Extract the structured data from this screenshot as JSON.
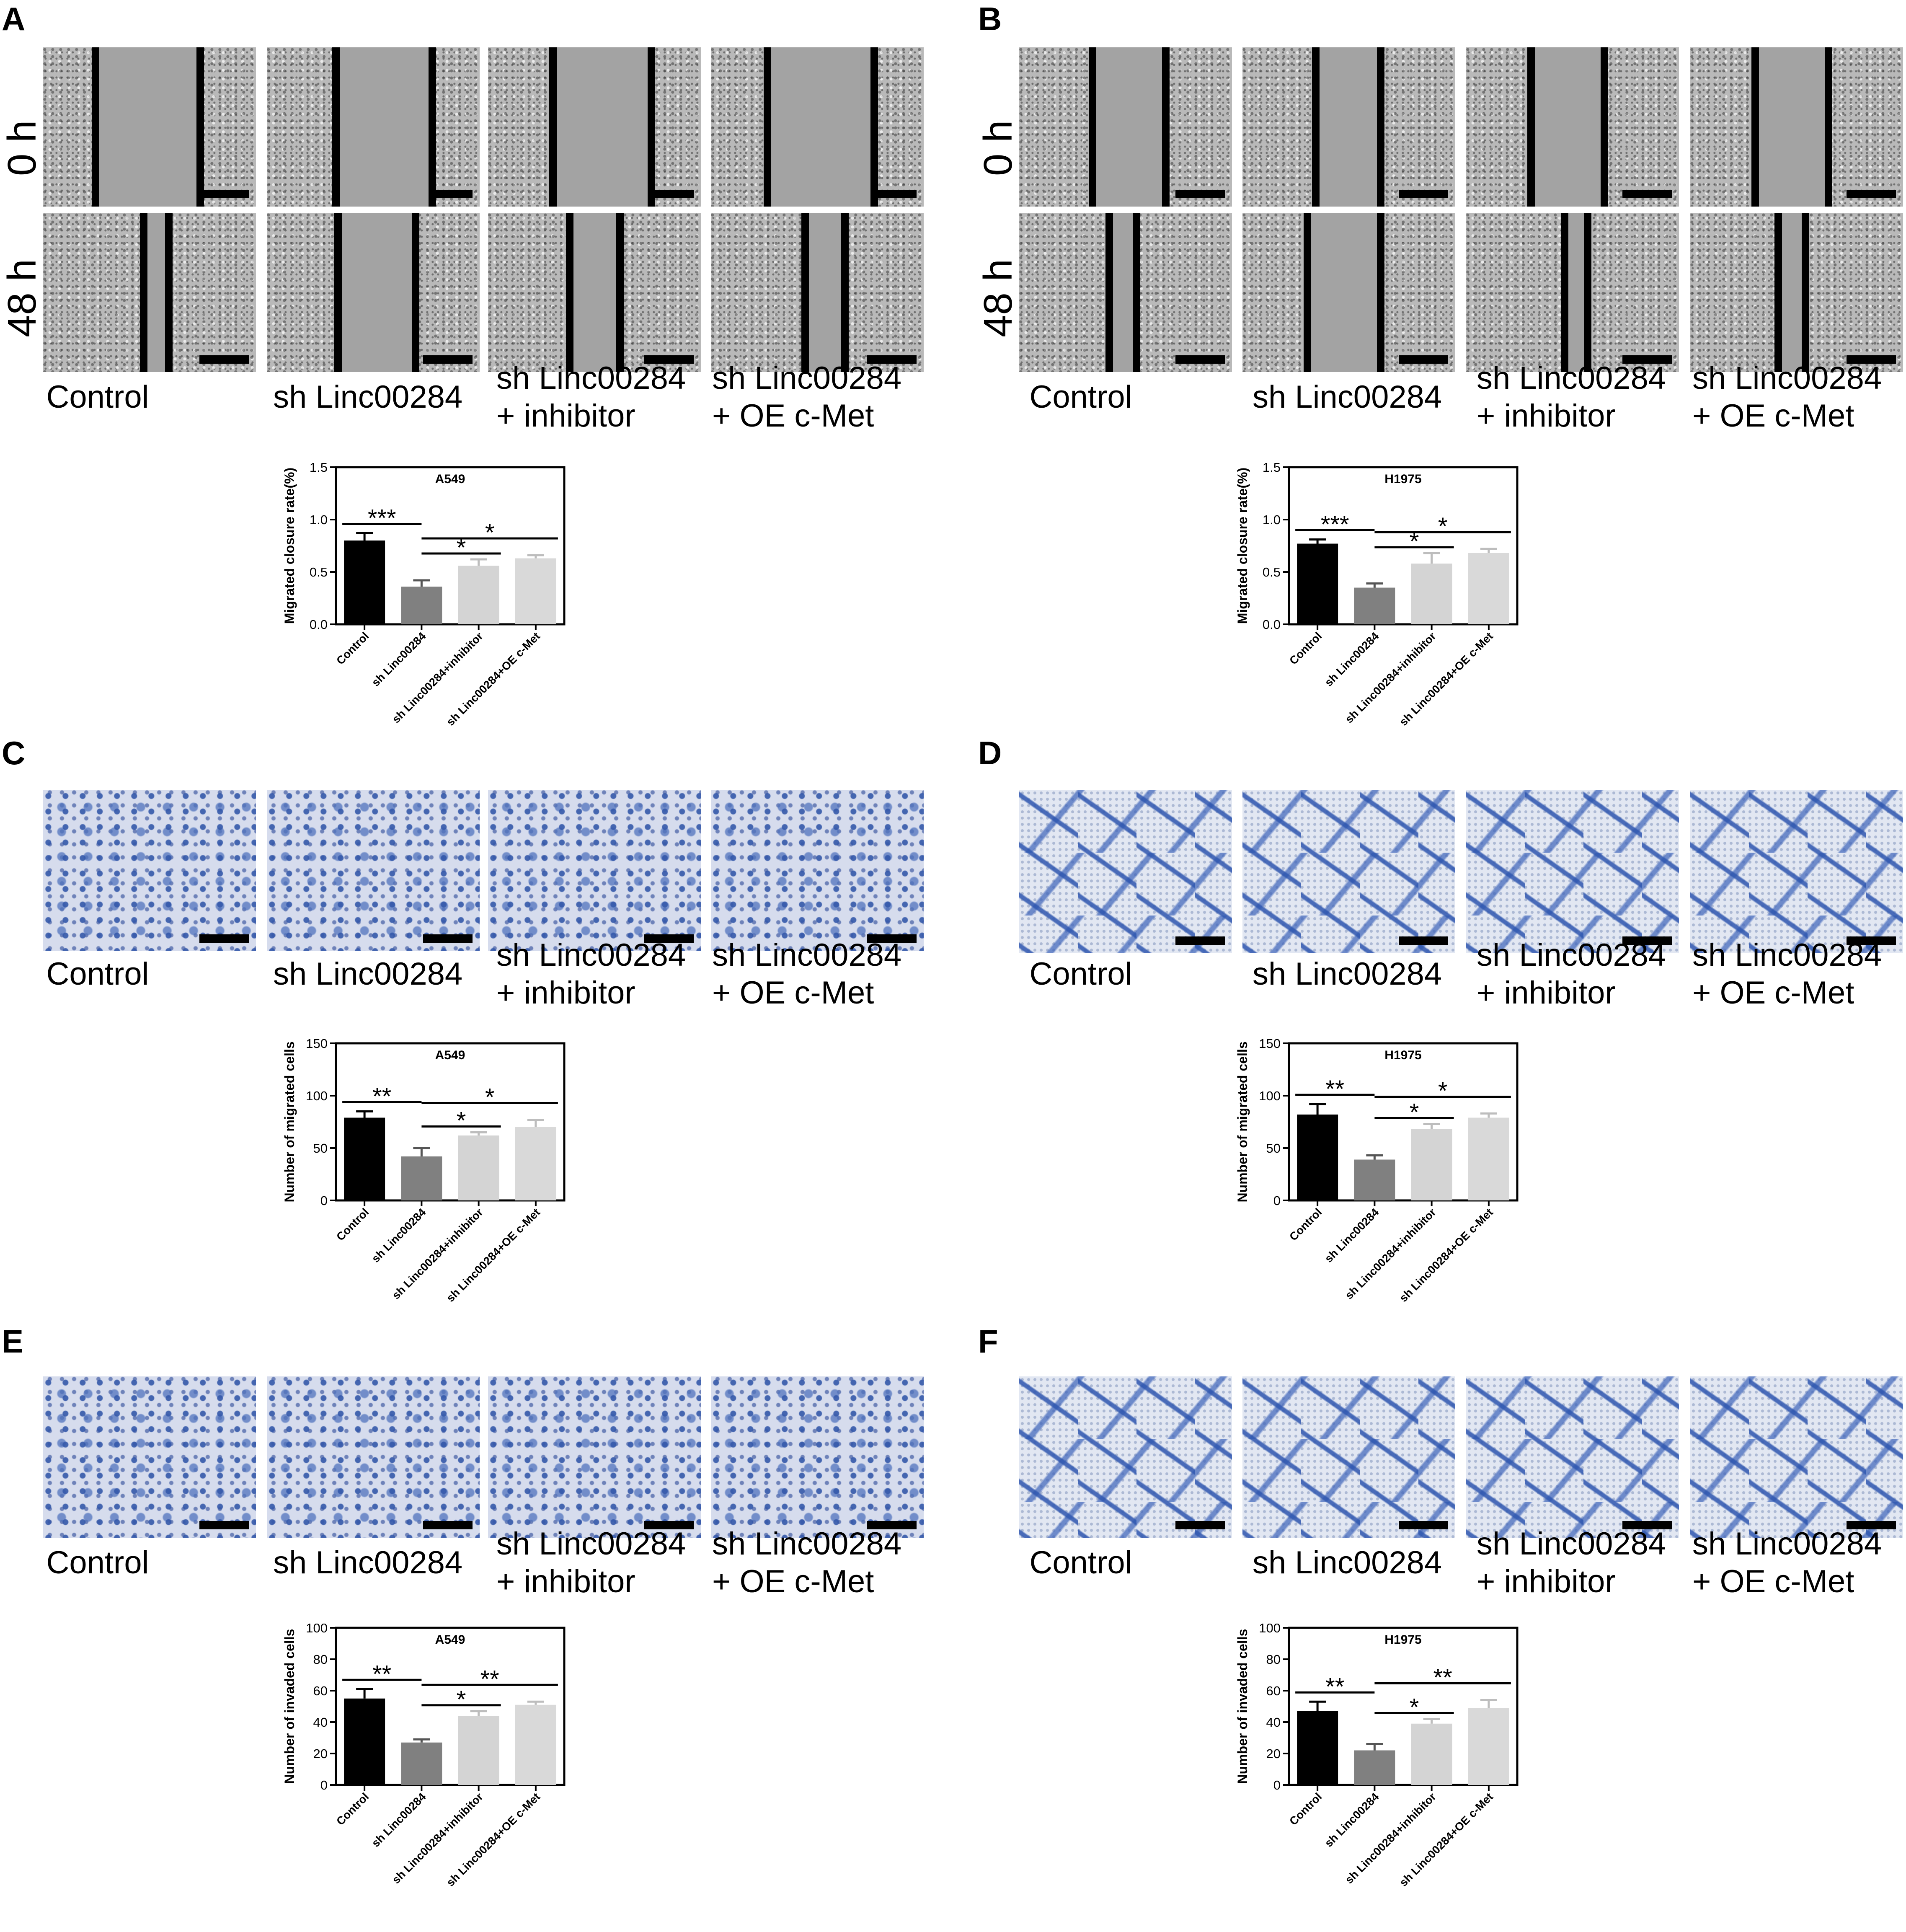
{
  "panels": [
    {
      "letter": "A",
      "rows": [
        "0 h",
        "48 h"
      ],
      "groups": [
        "Control",
        "sh Linc00284",
        "sh Linc00284\n+ inhibitor",
        "sh Linc00284\n+ OE c-Met"
      ]
    },
    {
      "letter": "B",
      "rows": [
        "0 h",
        "48 h"
      ],
      "groups": [
        "Control",
        "sh Linc00284",
        "sh Linc00284\n+ inhibitor",
        "sh Linc00284\n+ OE c-Met"
      ]
    },
    {
      "letter": "C",
      "groups": [
        "Control",
        "sh Linc00284",
        "sh Linc00284\n+ inhibitor",
        "sh Linc00284\n+ OE c-Met"
      ]
    },
    {
      "letter": "D",
      "groups": [
        "Control",
        "sh Linc00284",
        "sh Linc00284\n+ inhibitor",
        "sh Linc00284\n+ OE c-Met"
      ]
    },
    {
      "letter": "E",
      "groups": [
        "Control",
        "sh Linc00284",
        "sh Linc00284\n+ inhibitor",
        "sh Linc00284\n+ OE c-Met"
      ]
    },
    {
      "letter": "F",
      "groups": [
        "Control",
        "sh Linc00284",
        "sh Linc00284\n+ inhibitor",
        "sh Linc00284\n+ OE c-Met"
      ]
    }
  ],
  "colors": {
    "control": "#000000",
    "sh": "#808080",
    "inhibitor": "#d4d4d4",
    "oe": "#d9d9d9",
    "scratch_bg": "#b9b9b9",
    "stain": "#3a64b4"
  },
  "chart_data": [
    {
      "type": "bar",
      "title": "A549",
      "ylabel": "Migrated closure rate(%)",
      "ylim": [
        0,
        1.5
      ],
      "yticks": [
        "0.0",
        "0.5",
        "1.0",
        "1.5"
      ],
      "categories": [
        "Control",
        "sh Linc00284",
        "sh Linc00284+inhibitor",
        "sh Linc00284+OE c-Met"
      ],
      "values": [
        0.8,
        0.36,
        0.56,
        0.63
      ],
      "errors": [
        0.07,
        0.06,
        0.06,
        0.03
      ],
      "significance": [
        {
          "label": "***",
          "from": 0,
          "to": 1
        },
        {
          "label": "*",
          "from": 1,
          "to": 2
        },
        {
          "label": "*",
          "from": 1,
          "to": 3
        }
      ]
    },
    {
      "type": "bar",
      "title": "H1975",
      "ylabel": "Migrated closure rate(%)",
      "ylim": [
        0,
        1.5
      ],
      "yticks": [
        "0.0",
        "0.5",
        "1.0",
        "1.5"
      ],
      "categories": [
        "Control",
        "sh Linc00284",
        "sh Linc00284+inhibitor",
        "sh Linc00284+OE c-Met"
      ],
      "values": [
        0.77,
        0.35,
        0.58,
        0.68
      ],
      "errors": [
        0.04,
        0.04,
        0.1,
        0.04
      ],
      "significance": [
        {
          "label": "***",
          "from": 0,
          "to": 1
        },
        {
          "label": "*",
          "from": 1,
          "to": 2
        },
        {
          "label": "*",
          "from": 1,
          "to": 3
        }
      ]
    },
    {
      "type": "bar",
      "title": "A549",
      "ylabel": "Number of migrated cells",
      "ylim": [
        0,
        150
      ],
      "yticks": [
        "0",
        "50",
        "100",
        "150"
      ],
      "categories": [
        "Control",
        "sh Linc00284",
        "sh Linc00284+inhibitor",
        "sh Linc00284+OE c-Met"
      ],
      "values": [
        79,
        42,
        62,
        70
      ],
      "errors": [
        6,
        8,
        3,
        7
      ],
      "significance": [
        {
          "label": "**",
          "from": 0,
          "to": 1
        },
        {
          "label": "*",
          "from": 1,
          "to": 2
        },
        {
          "label": "*",
          "from": 1,
          "to": 3
        }
      ]
    },
    {
      "type": "bar",
      "title": "H1975",
      "ylabel": "Number of migrated cells",
      "ylim": [
        0,
        150
      ],
      "yticks": [
        "0",
        "50",
        "100",
        "150"
      ],
      "categories": [
        "Control",
        "sh Linc00284",
        "sh Linc00284+inhibitor",
        "sh Linc00284+OE c-Met"
      ],
      "values": [
        82,
        39,
        68,
        79
      ],
      "errors": [
        10,
        4,
        5,
        4
      ],
      "significance": [
        {
          "label": "**",
          "from": 0,
          "to": 1
        },
        {
          "label": "*",
          "from": 1,
          "to": 2
        },
        {
          "label": "*",
          "from": 1,
          "to": 3
        }
      ]
    },
    {
      "type": "bar",
      "title": "A549",
      "ylabel": "Number of invaded cells",
      "ylim": [
        0,
        100
      ],
      "yticks": [
        "0",
        "20",
        "40",
        "60",
        "80",
        "100"
      ],
      "categories": [
        "Control",
        "sh Linc00284",
        "sh Linc00284+inhibitor",
        "sh Linc00284+OE c-Met"
      ],
      "values": [
        55,
        27,
        44,
        51
      ],
      "errors": [
        6,
        2,
        3,
        2
      ],
      "significance": [
        {
          "label": "**",
          "from": 0,
          "to": 1
        },
        {
          "label": "*",
          "from": 1,
          "to": 2
        },
        {
          "label": "**",
          "from": 1,
          "to": 3
        }
      ]
    },
    {
      "type": "bar",
      "title": "H1975",
      "ylabel": "Number of invaded cells",
      "ylim": [
        0,
        100
      ],
      "yticks": [
        "0",
        "20",
        "40",
        "60",
        "80",
        "100"
      ],
      "categories": [
        "Control",
        "sh Linc00284",
        "sh Linc00284+inhibitor",
        "sh Linc00284+OE c-Met"
      ],
      "values": [
        47,
        22,
        39,
        49
      ],
      "errors": [
        6,
        4,
        3,
        5
      ],
      "significance": [
        {
          "label": "**",
          "from": 0,
          "to": 1
        },
        {
          "label": "*",
          "from": 1,
          "to": 2
        },
        {
          "label": "**",
          "from": 1,
          "to": 3
        }
      ]
    }
  ]
}
